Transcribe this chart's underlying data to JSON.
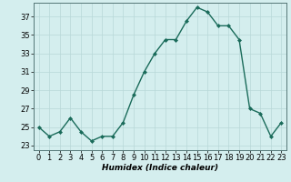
{
  "x": [
    0,
    1,
    2,
    3,
    4,
    5,
    6,
    7,
    8,
    9,
    10,
    11,
    12,
    13,
    14,
    15,
    16,
    17,
    18,
    19,
    20,
    21,
    22,
    23
  ],
  "y": [
    25,
    24,
    24.5,
    26,
    24.5,
    23.5,
    24,
    24,
    25.5,
    28.5,
    31,
    33,
    34.5,
    34.5,
    36.5,
    38,
    37.5,
    36,
    36,
    34.5,
    27,
    26.5,
    24,
    25.5
  ],
  "line_color": "#1a6b5a",
  "marker_color": "#1a6b5a",
  "bg_color": "#d4eeee",
  "grid_color": "#b8d8d8",
  "xlabel": "Humidex (Indice chaleur)",
  "xlim": [
    -0.5,
    23.5
  ],
  "ylim": [
    22.5,
    38.5
  ],
  "yticks": [
    23,
    25,
    27,
    29,
    31,
    33,
    35,
    37
  ],
  "xticks": [
    0,
    1,
    2,
    3,
    4,
    5,
    6,
    7,
    8,
    9,
    10,
    11,
    12,
    13,
    14,
    15,
    16,
    17,
    18,
    19,
    20,
    21,
    22,
    23
  ],
  "xlabel_fontsize": 6.5,
  "tick_fontsize": 6,
  "linewidth": 1.0,
  "markersize": 2.0
}
